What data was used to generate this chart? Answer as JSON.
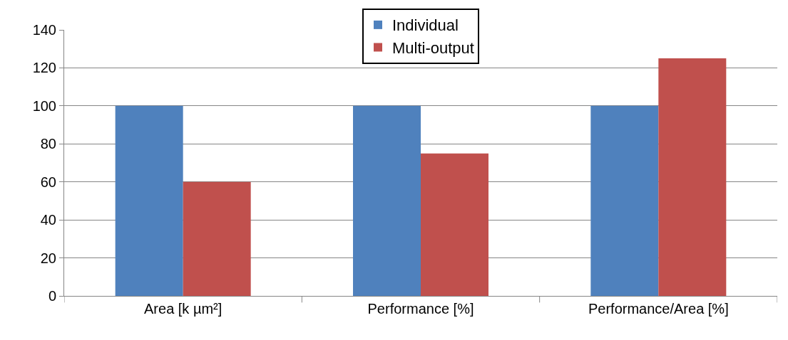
{
  "chart_data": {
    "type": "bar",
    "categories": [
      "Area [k µm²]",
      "Performance [%]",
      "Performance/Area [%]"
    ],
    "series": [
      {
        "name": "Individual",
        "color": "#4f81bd",
        "values": [
          100,
          100,
          100
        ]
      },
      {
        "name": "Multi-output",
        "color": "#c0504d",
        "values": [
          60,
          75,
          125
        ]
      }
    ],
    "ylim": [
      0,
      140
    ],
    "yticks": [
      0,
      20,
      40,
      60,
      80,
      100,
      120,
      140
    ],
    "grid": "y",
    "legend": "top"
  }
}
